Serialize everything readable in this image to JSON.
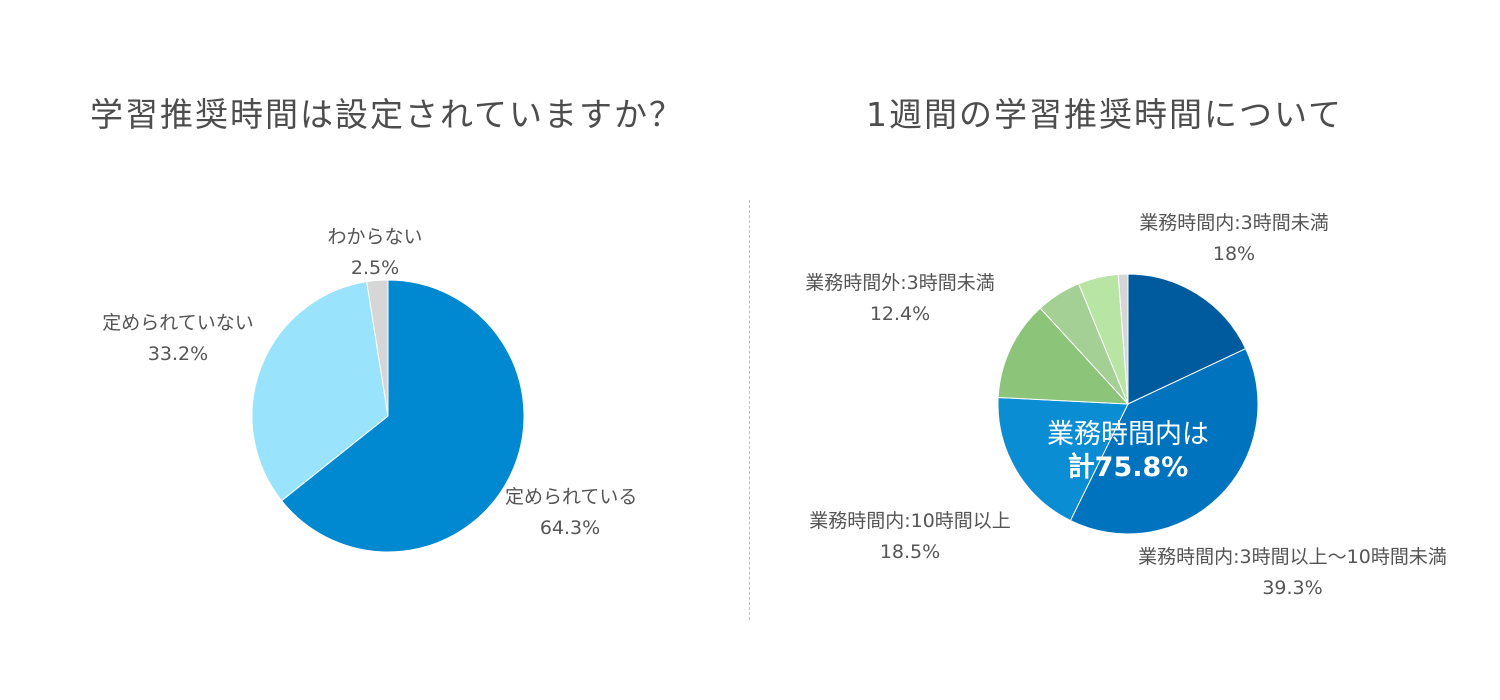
{
  "titles": {
    "left": "学習推奨時間は設定されていますか？",
    "right": "1週間の学習推奨時間について"
  },
  "chart_data": [
    {
      "type": "pie",
      "title": "学習推奨時間は設定されていますか？",
      "slices": [
        {
          "label": "定められている",
          "value": 64.3,
          "value_text": "64.3%",
          "color": "#0089d0"
        },
        {
          "label": "定められていない",
          "value": 33.2,
          "value_text": "33.2%",
          "color": "#9ae3fd"
        },
        {
          "label": "わからない",
          "value": 2.5,
          "value_text": "2.5%",
          "color": "#d6d6d6"
        }
      ]
    },
    {
      "type": "pie",
      "title": "1週間の学習推奨時間について",
      "slices": [
        {
          "label": "業務時間内:3時間未満",
          "value": 18,
          "value_text": "18%",
          "color": "#005a9e"
        },
        {
          "label": "業務時間内:3時間以上〜10時間未満",
          "value": 39.3,
          "value_text": "39.3%",
          "color": "#0073bf"
        },
        {
          "label": "業務時間内:10時間以上",
          "value": 18.5,
          "value_text": "18.5%",
          "color": "#0a8dd3"
        },
        {
          "label": "業務時間外:3時間未満",
          "value": 12.4,
          "value_text": "12.4%",
          "color": "#8cc47a"
        },
        {
          "label": "",
          "value": 5.6,
          "value_text": "",
          "color": "#a4cf95"
        },
        {
          "label": "",
          "value": 5.0,
          "value_text": "",
          "color": "#b8e4a4"
        },
        {
          "label": "",
          "value": 1.2,
          "value_text": "",
          "color": "#d6d6d6"
        }
      ],
      "center_label": {
        "line1": "業務時間内は",
        "line2": "計75.8%"
      }
    }
  ]
}
